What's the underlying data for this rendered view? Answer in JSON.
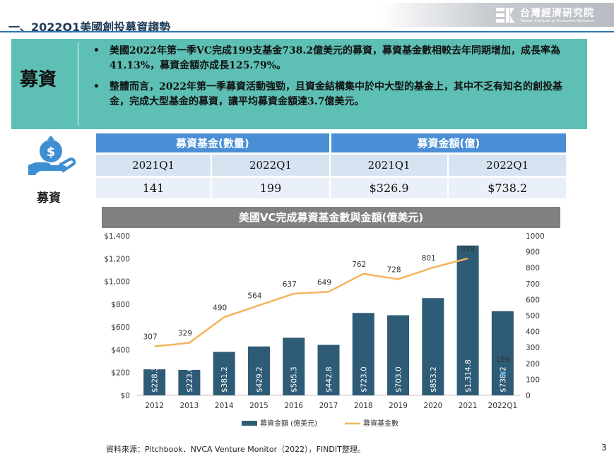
{
  "header": {
    "section_title": "一、2022Q1美國創投募資趨勢",
    "logo_zh": "台灣經濟研究院",
    "logo_en": "Taiwan Institute of Economic Research"
  },
  "summary": {
    "label": "募資",
    "bullet_glyph": "•",
    "bullets": [
      "美國2022年第一季VC完成199支基金738.2億美元的募資，募資基金數相較去年同期增加，成長率為41.13%，募資金額亦成長125.79%。",
      "整體而言，2022年第一季募資活動強勁，且資金結構集中於中大型的基金上，其中不乏有知名的創投基金，完成大型基金的募資，讓平均募資金額達3.7億美元。"
    ]
  },
  "icon": {
    "name": "money-hand-icon",
    "label": "募資",
    "color": "#3d8fd1"
  },
  "table": {
    "group_headers": [
      "募資基金(數量)",
      "募資金額(億)"
    ],
    "periods": [
      "2021Q1",
      "2022Q1",
      "2021Q1",
      "2022Q1"
    ],
    "values": [
      "141",
      "199",
      "$326.9",
      "$738.2"
    ]
  },
  "chart_title": "美國VC完成募資基金數與金額(億美元)",
  "chart_data": {
    "type": "bar",
    "categories": [
      "2012",
      "2013",
      "2014",
      "2015",
      "2016",
      "2017",
      "2018",
      "2019",
      "2020",
      "2021",
      "2022Q1"
    ],
    "series": [
      {
        "name": "募資金額 (億美元)",
        "type": "bar",
        "axis": "left",
        "values": [
          228.3,
          223.6,
          381.2,
          429.2,
          505.3,
          442.8,
          723.0,
          703.0,
          853.2,
          1314.8,
          738.2
        ],
        "labels": [
          "$228.3",
          "$223.6",
          "$381.2",
          "$429.2",
          "$505.3",
          "$442.8",
          "$723.0",
          "$703.0",
          "$853.2",
          "$1,314.8",
          "$738.2"
        ],
        "color": "#2e5b76"
      },
      {
        "name": "募資基金數",
        "type": "line",
        "axis": "right",
        "values": [
          307,
          329,
          490,
          564,
          637,
          649,
          762,
          728,
          801,
          858,
          null
        ],
        "labels": [
          "307",
          "329",
          "490",
          "564",
          "637",
          "649",
          "762",
          "728",
          "801",
          "858",
          ""
        ],
        "color": "#f4b35c"
      },
      {
        "name": "",
        "type": "point",
        "axis": "right",
        "values": [
          null,
          null,
          null,
          null,
          null,
          null,
          null,
          null,
          null,
          null,
          199
        ],
        "labels": [
          "",
          "",
          "",
          "",
          "",
          "",
          "",
          "",
          "",
          "",
          "199"
        ],
        "color": "#5aa8e6"
      }
    ],
    "y_left": {
      "ylim": [
        0,
        1400
      ],
      "ticks": [
        0,
        200,
        400,
        600,
        800,
        1000,
        1200,
        1400
      ],
      "tick_labels": [
        "$0",
        "$200",
        "$400",
        "$600",
        "$800",
        "$1,000",
        "$1,200",
        "$1,400"
      ]
    },
    "y_right": {
      "ylim": [
        0,
        1000
      ],
      "ticks": [
        0,
        100,
        200,
        300,
        400,
        500,
        600,
        700,
        800,
        900,
        1000
      ],
      "tick_labels": [
        "0",
        "100",
        "200",
        "300",
        "400",
        "500",
        "600",
        "700",
        "800",
        "900",
        "1000"
      ]
    },
    "grid": false,
    "legend": "bottom"
  },
  "footer": {
    "source": "資料來源：Pitchbook．NVCA Venture Monitor（2022），FINDIT整理。",
    "page": "3"
  }
}
